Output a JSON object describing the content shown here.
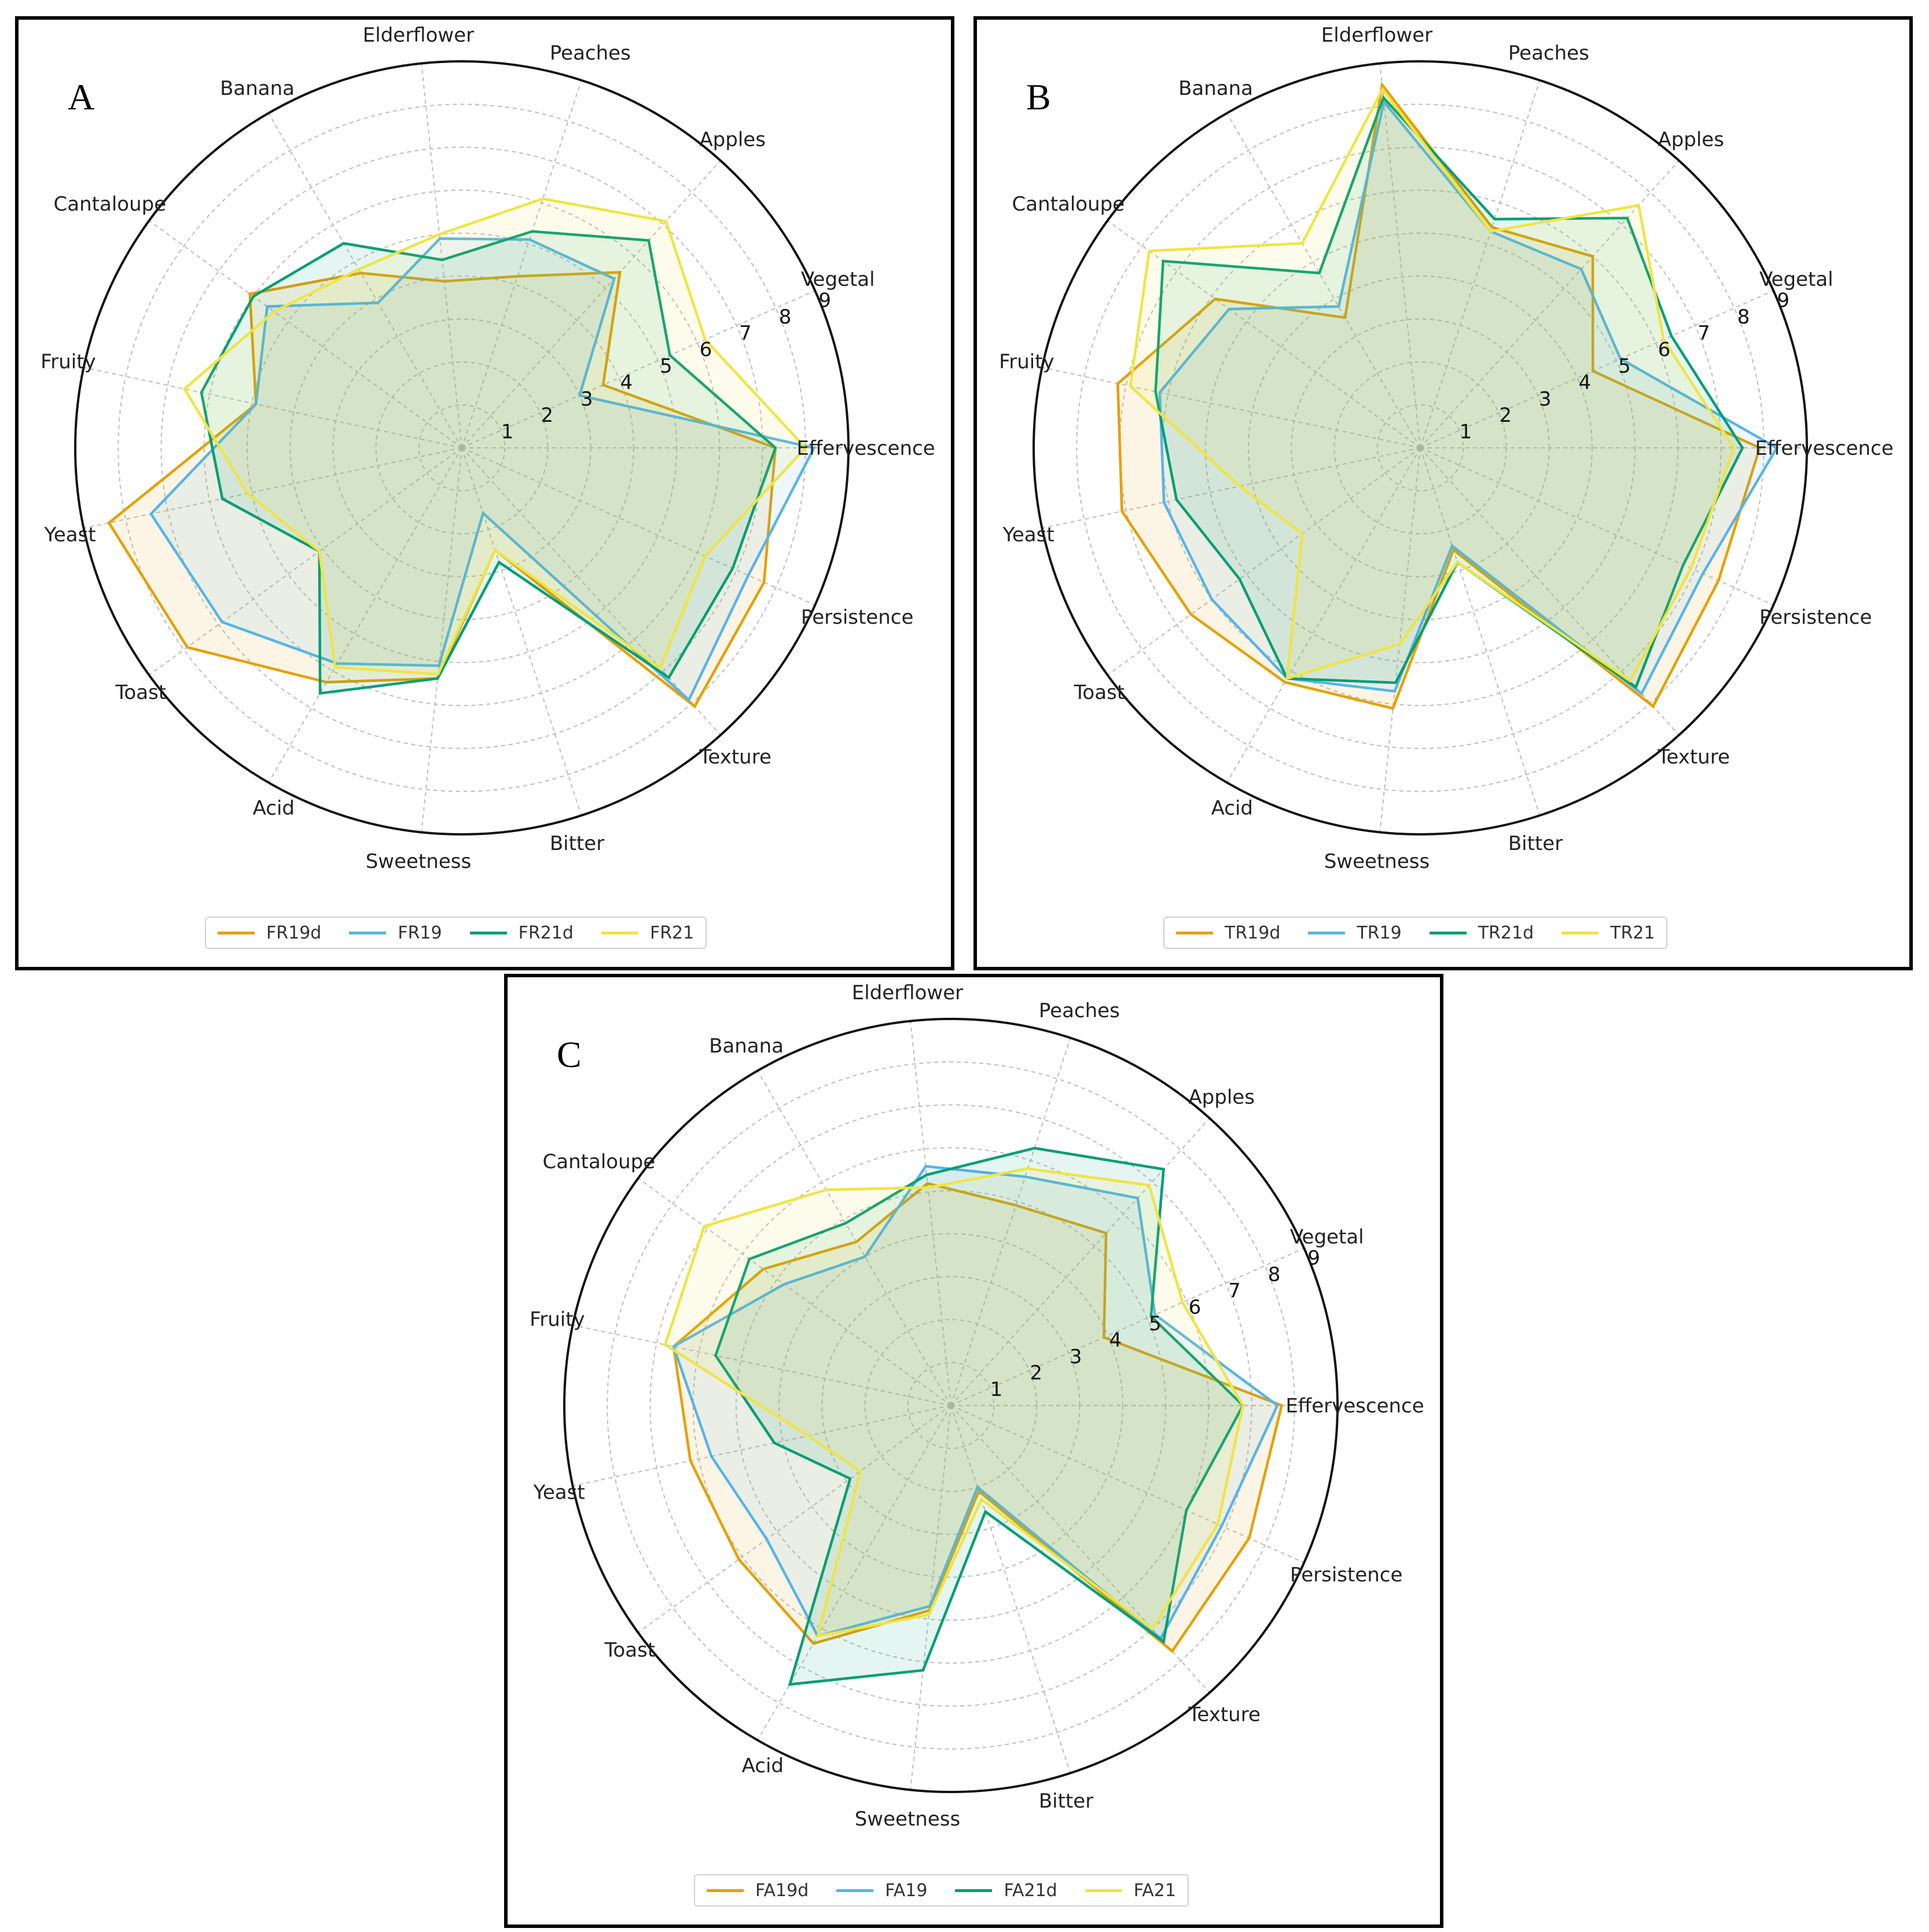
{
  "palette": [
    "#E69F00",
    "#56B4E9",
    "#009E73",
    "#F0E442"
  ],
  "chart_data": [
    {
      "type": "radar",
      "panel_letter": "A",
      "axes": [
        "Effervescence",
        "Vegetal",
        "Apples",
        "Peaches",
        "Elderflower",
        "Banana",
        "Cantaloupe",
        "Fruity",
        "Yeast",
        "Toast",
        "Acid",
        "Sweetness",
        "Bitter",
        "Texture",
        "Persistence"
      ],
      "tick_labels": [
        "1",
        "2",
        "3",
        "4",
        "5",
        "6",
        "7",
        "8",
        "9"
      ],
      "rlim": [
        0,
        9
      ],
      "grid": true,
      "legend_position": "bottom",
      "series": [
        {
          "name": "FR19d",
          "values": [
            7.3,
            3.6,
            5.5,
            4.2,
            3.9,
            4.7,
            6.1,
            4.9,
            8.4,
            7.9,
            6.3,
            5.4,
            2.5,
            8.1,
            7.7
          ]
        },
        {
          "name": "FR19",
          "values": [
            8.2,
            3.0,
            5.3,
            5.1,
            4.9,
            3.9,
            5.6,
            4.9,
            7.4,
            6.9,
            5.8,
            5.1,
            1.6,
            7.9,
            7.3
          ]
        },
        {
          "name": "FR21d",
          "values": [
            7.3,
            5.3,
            6.5,
            5.3,
            4.4,
            5.5,
            6.0,
            6.2,
            5.7,
            4.1,
            6.6,
            5.4,
            2.8,
            7.2,
            6.9
          ]
        },
        {
          "name": "FR21",
          "values": [
            8.0,
            6.2,
            7.1,
            6.1,
            5.0,
            4.8,
            5.4,
            6.6,
            5.1,
            4.1,
            5.9,
            5.3,
            2.5,
            6.9,
            6.2
          ]
        }
      ]
    },
    {
      "type": "radar",
      "panel_letter": "B",
      "axes": [
        "Effervescence",
        "Vegetal",
        "Apples",
        "Peaches",
        "Elderflower",
        "Banana",
        "Cantaloupe",
        "Fruity",
        "Yeast",
        "Toast",
        "Acid",
        "Sweetness",
        "Bitter",
        "Texture",
        "Persistence"
      ],
      "tick_labels": [
        "1",
        "2",
        "3",
        "4",
        "5",
        "6",
        "7",
        "8",
        "9"
      ],
      "rlim": [
        0,
        9
      ],
      "grid": true,
      "legend_position": "bottom",
      "series": [
        {
          "name": "TR19d",
          "values": [
            7.9,
            4.4,
            6.0,
            5.4,
            8.5,
            3.5,
            5.9,
            7.2,
            7.1,
            6.6,
            6.3,
            6.1,
            2.5,
            8.1,
            7.6
          ]
        },
        {
          "name": "TR19",
          "values": [
            8.3,
            5.1,
            5.6,
            5.3,
            8.1,
            3.8,
            5.5,
            6.2,
            6.1,
            6.0,
            6.2,
            5.7,
            2.4,
            7.7,
            7.2
          ]
        },
        {
          "name": "TR21d",
          "values": [
            7.5,
            6.4,
            7.2,
            5.6,
            8.2,
            4.7,
            7.4,
            6.3,
            5.8,
            5.2,
            6.2,
            5.5,
            2.8,
            7.5,
            6.7
          ]
        },
        {
          "name": "TR21",
          "values": [
            7.3,
            6.2,
            7.6,
            5.3,
            8.4,
            5.5,
            7.8,
            6.9,
            4.3,
            3.4,
            6.2,
            4.6,
            2.8,
            7.3,
            6.9
          ]
        }
      ]
    },
    {
      "type": "radar",
      "panel_letter": "C",
      "axes": [
        "Effervescence",
        "Vegetal",
        "Apples",
        "Peaches",
        "Elderflower",
        "Banana",
        "Cantaloupe",
        "Fruity",
        "Yeast",
        "Toast",
        "Acid",
        "Sweetness",
        "Bitter",
        "Texture",
        "Persistence"
      ],
      "tick_labels": [
        "1",
        "2",
        "3",
        "4",
        "5",
        "6",
        "7",
        "8",
        "9"
      ],
      "rlim": [
        0,
        9
      ],
      "grid": true,
      "legend_position": "bottom",
      "series": [
        {
          "name": "FA19d",
          "values": [
            7.7,
            3.9,
            5.4,
            4.9,
            5.2,
            4.4,
            5.4,
            6.6,
            6.2,
            6.1,
            6.4,
            4.8,
            2.1,
            7.7,
            7.6
          ]
        },
        {
          "name": "FA19",
          "values": [
            7.6,
            5.2,
            6.5,
            5.6,
            5.6,
            4.0,
            4.8,
            6.6,
            5.7,
            5.3,
            6.2,
            4.7,
            2.0,
            7.3,
            6.9
          ]
        },
        {
          "name": "FA21d",
          "values": [
            6.8,
            5.1,
            7.4,
            6.3,
            5.4,
            4.9,
            5.8,
            5.6,
            4.2,
            2.9,
            7.5,
            6.2,
            2.6,
            7.4,
            6.0
          ]
        },
        {
          "name": "FA21",
          "values": [
            6.8,
            5.9,
            6.9,
            5.8,
            5.1,
            5.8,
            7.1,
            6.8,
            3.4,
            2.6,
            6.2,
            4.9,
            2.3,
            7.0,
            6.8
          ]
        }
      ]
    }
  ]
}
